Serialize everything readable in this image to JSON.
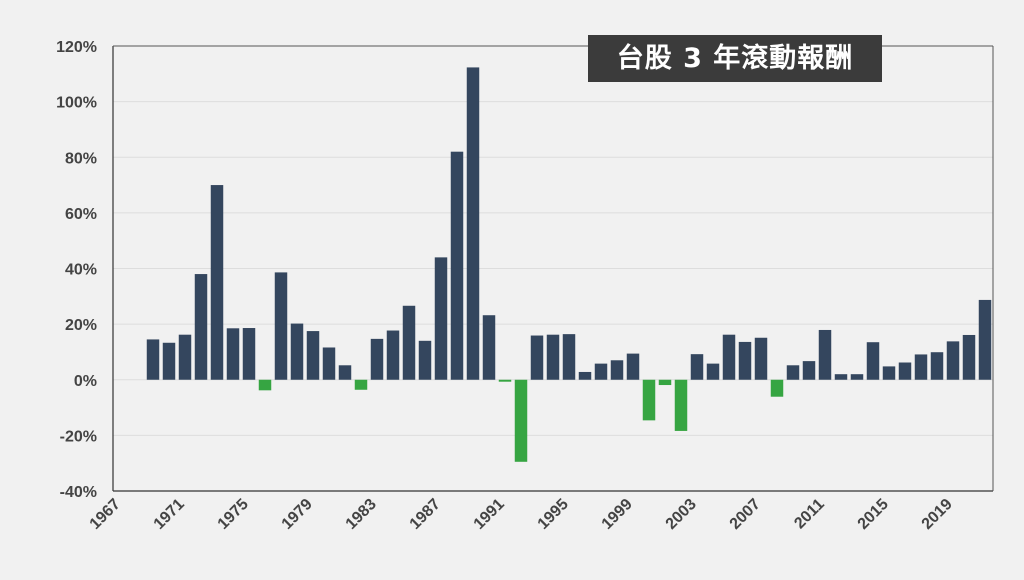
{
  "chart_data": {
    "type": "bar",
    "title": "台股 3 年滾動報酬",
    "xlabel": "",
    "ylabel": "",
    "ylim": [
      -40,
      120
    ],
    "yticks": [
      "-40%",
      "-20%",
      "0%",
      "20%",
      "40%",
      "60%",
      "80%",
      "100%",
      "120%"
    ],
    "yticks_values": [
      -40,
      -20,
      0,
      20,
      40,
      60,
      80,
      100,
      120
    ],
    "xticks": [
      "1967",
      "1971",
      "1975",
      "1979",
      "1983",
      "1987",
      "1991",
      "1995",
      "1999",
      "2003",
      "2007",
      "2011",
      "2015",
      "2019"
    ],
    "xlim": [
      1967,
      2021
    ],
    "grid": true,
    "colors": {
      "positive": "#34465e",
      "negative": "#36a542",
      "grid": "#dddddd",
      "axis": "#333333"
    },
    "categories": [
      1969,
      1970,
      1971,
      1972,
      1973,
      1974,
      1975,
      1976,
      1977,
      1978,
      1979,
      1980,
      1981,
      1982,
      1983,
      1984,
      1985,
      1986,
      1987,
      1988,
      1989,
      1990,
      1991,
      1992,
      1993,
      1994,
      1995,
      1996,
      1997,
      1998,
      1999,
      2000,
      2001,
      2002,
      2003,
      2004,
      2005,
      2006,
      2007,
      2008,
      2009,
      2010,
      2011,
      2012,
      2013,
      2014,
      2015,
      2016,
      2017,
      2018,
      2019,
      2020,
      2021
    ],
    "values": [
      14.5,
      13.3,
      16.2,
      38.0,
      70.0,
      18.5,
      18.6,
      -3.8,
      38.6,
      20.2,
      17.5,
      11.6,
      5.2,
      -3.6,
      14.7,
      17.7,
      26.6,
      14.0,
      44.0,
      82.0,
      112.3,
      23.2,
      -0.7,
      -29.5,
      15.9,
      16.2,
      16.4,
      2.8,
      5.8,
      7.0,
      9.4,
      -14.6,
      -1.9,
      -18.4,
      9.2,
      5.8,
      16.2,
      13.6,
      15.1,
      -6.1,
      5.2,
      6.7,
      17.9,
      2.0,
      2.0,
      13.5,
      4.8,
      6.2,
      9.1,
      9.9,
      13.8,
      16.1,
      28.7
    ]
  }
}
